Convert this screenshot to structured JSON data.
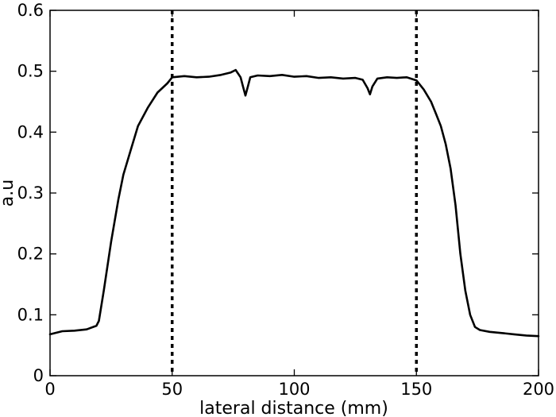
{
  "chart_data": {
    "type": "line",
    "title": "",
    "xlabel": "lateral distance (mm)",
    "ylabel": "a.u",
    "xlim": [
      0,
      200
    ],
    "ylim": [
      0,
      0.6
    ],
    "xticks": [
      0,
      50,
      100,
      150,
      200
    ],
    "yticks": [
      0,
      0.1,
      0.2,
      0.3,
      0.4,
      0.5,
      0.6
    ],
    "xtick_labels": [
      "0",
      "50",
      "100",
      "150",
      "200"
    ],
    "ytick_labels": [
      "0",
      "0.1",
      "0.2",
      "0.3",
      "0.4",
      "0.5",
      "0.6"
    ],
    "grid": false,
    "legend": "none",
    "line_color": "#000000",
    "reference_lines": [
      {
        "orientation": "vertical",
        "x": 50,
        "style": "dotted"
      },
      {
        "orientation": "vertical",
        "x": 150,
        "style": "dotted"
      }
    ],
    "series": [
      {
        "x": [
          0,
          5,
          10,
          15,
          19,
          20,
          22,
          25,
          28,
          30,
          33,
          36,
          40,
          44,
          48,
          50,
          55,
          60,
          65,
          70,
          74,
          76,
          78,
          79,
          80,
          81,
          82,
          85,
          90,
          95,
          100,
          105,
          110,
          115,
          120,
          125,
          128,
          130,
          131,
          132,
          134,
          138,
          142,
          146,
          150,
          153,
          156,
          158,
          160,
          162,
          164,
          166,
          168,
          170,
          172,
          174,
          176,
          180,
          185,
          190,
          195,
          200
        ],
        "y": [
          0.068,
          0.073,
          0.074,
          0.076,
          0.082,
          0.09,
          0.14,
          0.22,
          0.29,
          0.33,
          0.37,
          0.41,
          0.44,
          0.465,
          0.48,
          0.49,
          0.492,
          0.49,
          0.491,
          0.494,
          0.498,
          0.502,
          0.49,
          0.475,
          0.46,
          0.475,
          0.49,
          0.493,
          0.492,
          0.494,
          0.491,
          0.492,
          0.489,
          0.49,
          0.488,
          0.489,
          0.486,
          0.472,
          0.462,
          0.475,
          0.488,
          0.49,
          0.489,
          0.49,
          0.485,
          0.47,
          0.45,
          0.43,
          0.41,
          0.38,
          0.34,
          0.28,
          0.2,
          0.14,
          0.1,
          0.08,
          0.075,
          0.072,
          0.07,
          0.068,
          0.066,
          0.065
        ]
      }
    ]
  }
}
